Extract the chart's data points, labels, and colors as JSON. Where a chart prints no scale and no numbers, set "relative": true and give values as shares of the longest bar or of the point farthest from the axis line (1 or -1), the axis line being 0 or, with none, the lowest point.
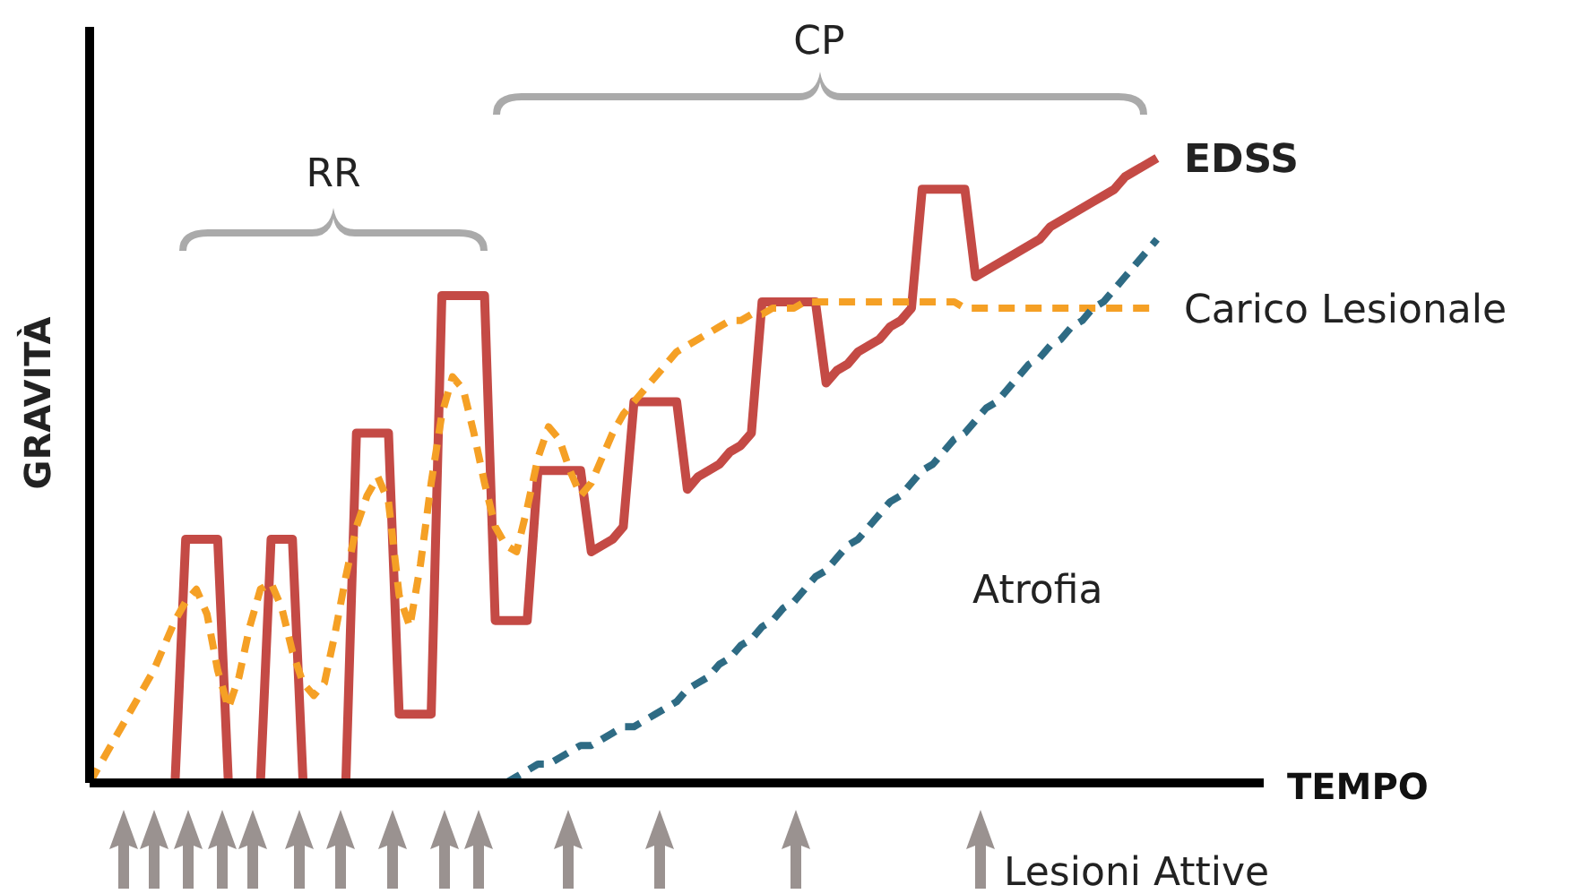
{
  "chart_data": {
    "type": "line",
    "relative": true,
    "xlabel": "TEMPO",
    "ylabel": "GRAVITÀ",
    "marker": "none",
    "annotations": [
      "RR",
      "CP",
      "Lesioni Attive"
    ],
    "categories": [
      null,
      null,
      null,
      null,
      null,
      null,
      null,
      null,
      null,
      null,
      null,
      null,
      null,
      null,
      null,
      null,
      null,
      null,
      null,
      null,
      null,
      null,
      null,
      null,
      null,
      null,
      null,
      null,
      null,
      null,
      null,
      null,
      null,
      null,
      null,
      null,
      null,
      null,
      null,
      null,
      null,
      null,
      null,
      null,
      null,
      null,
      null,
      null,
      null,
      null,
      null,
      null,
      null,
      null,
      null,
      null,
      null,
      null,
      null,
      null,
      null,
      null,
      null,
      null,
      null,
      null,
      null,
      null,
      null,
      null,
      null,
      null,
      null,
      null,
      null,
      null,
      null,
      null,
      null,
      null,
      null,
      null,
      null,
      null,
      null,
      null,
      null,
      null,
      null,
      null,
      null,
      null,
      null,
      null,
      null,
      null,
      null,
      null,
      null,
      null,
      null,
      null,
      null,
      null,
      null,
      null,
      null,
      null,
      null,
      null,
      null
    ],
    "series": [
      {
        "name": "EDSS",
        "color": "#c44a45",
        "line_style": "solid",
        "values": [
          null,
          null,
          null,
          null,
          null,
          null,
          null,
          null,
          0,
          0.39,
          0.39,
          0.39,
          0.39,
          0,
          0,
          0,
          0,
          0.39,
          0.39,
          0.39,
          0,
          0,
          0,
          0,
          0,
          0.56,
          0.56,
          0.56,
          0.56,
          0.11,
          0.11,
          0.11,
          0.11,
          0.78,
          0.78,
          0.78,
          0.78,
          0.78,
          0.26,
          0.26,
          0.26,
          0.26,
          0.5,
          0.5,
          0.5,
          0.5,
          0.5,
          0.37,
          0.38,
          0.39,
          0.41,
          0.61,
          0.61,
          0.61,
          0.61,
          0.61,
          0.47,
          0.49,
          0.5,
          0.51,
          0.53,
          0.54,
          0.56,
          0.77,
          0.77,
          0.77,
          0.77,
          0.77,
          0.77,
          0.64,
          0.66,
          0.67,
          0.69,
          0.7,
          0.71,
          0.73,
          0.74,
          0.76,
          0.95,
          0.95,
          0.95,
          0.95,
          0.95,
          0.81,
          0.82,
          0.83,
          0.84,
          0.85,
          0.86,
          0.87,
          0.89,
          0.9,
          0.91,
          0.92,
          0.93,
          0.94,
          0.95,
          0.97,
          0.98,
          0.99,
          1,
          null,
          null,
          null,
          null,
          null,
          null,
          null,
          null,
          null,
          null
        ]
      },
      {
        "name": "Carico Lesionale",
        "color": "#f5a025",
        "line_style": "dashed",
        "values": [
          0,
          0.03,
          0.06,
          0.09,
          0.12,
          0.15,
          0.18,
          0.22,
          0.26,
          0.29,
          0.31,
          0.27,
          0.18,
          0.12,
          0.17,
          0.25,
          0.31,
          0.32,
          0.28,
          0.21,
          0.16,
          0.14,
          0.16,
          0.24,
          0.33,
          0.41,
          0.46,
          0.49,
          0.45,
          0.3,
          0.25,
          0.35,
          0.48,
          0.59,
          0.65,
          0.63,
          0.56,
          0.48,
          0.41,
          0.38,
          0.37,
          0.44,
          0.52,
          0.57,
          0.55,
          0.5,
          0.46,
          0.48,
          0.52,
          0.56,
          0.59,
          0.61,
          0.63,
          0.65,
          0.67,
          0.69,
          0.7,
          0.71,
          0.72,
          0.73,
          0.74,
          0.74,
          0.75,
          0.75,
          0.76,
          0.76,
          0.76,
          0.77,
          0.77,
          0.77,
          0.77,
          0.77,
          0.77,
          0.77,
          0.77,
          0.77,
          0.77,
          0.77,
          0.77,
          0.77,
          0.77,
          0.77,
          0.76,
          0.76,
          0.76,
          0.76,
          0.76,
          0.76,
          0.76,
          0.76,
          0.76,
          0.76,
          0.76,
          0.76,
          0.76,
          0.76,
          0.76,
          0.76,
          0.76,
          0.76,
          0.76,
          null,
          null,
          null,
          null,
          null,
          null,
          null,
          null,
          null,
          null
        ]
      },
      {
        "name": "Atrofia",
        "color": "#2e6b84",
        "line_style": "dashed",
        "values": [
          null,
          null,
          null,
          null,
          null,
          null,
          null,
          null,
          null,
          null,
          null,
          null,
          null,
          null,
          null,
          null,
          null,
          null,
          null,
          null,
          null,
          null,
          null,
          null,
          null,
          null,
          null,
          null,
          null,
          null,
          null,
          null,
          null,
          null,
          null,
          null,
          null,
          null,
          null,
          0,
          0.01,
          0.02,
          0.03,
          0.03,
          0.04,
          0.05,
          0.06,
          0.06,
          0.07,
          0.08,
          0.09,
          0.09,
          0.1,
          0.11,
          0.12,
          0.13,
          0.15,
          0.16,
          0.17,
          0.19,
          0.2,
          0.22,
          0.23,
          0.25,
          0.26,
          0.28,
          0.29,
          0.31,
          0.33,
          0.34,
          0.36,
          0.38,
          0.39,
          0.41,
          0.43,
          0.45,
          0.46,
          0.48,
          0.5,
          0.51,
          0.53,
          0.55,
          0.56,
          0.58,
          0.6,
          0.61,
          0.63,
          0.65,
          0.67,
          0.68,
          0.7,
          0.71,
          0.73,
          0.74,
          0.76,
          0.77,
          0.79,
          0.81,
          0.83,
          0.85,
          0.87,
          null,
          null,
          null,
          null,
          null,
          null,
          null,
          null,
          null,
          null
        ]
      }
    ]
  }
}
